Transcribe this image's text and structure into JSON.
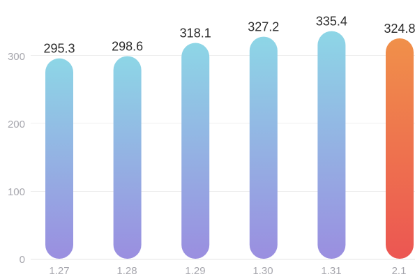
{
  "chart_data": {
    "type": "bar",
    "categories": [
      "1.27",
      "1.28",
      "1.29",
      "1.30",
      "1.31",
      "2.1"
    ],
    "values": [
      295.3,
      298.6,
      318.1,
      327.2,
      335.4,
      324.8
    ],
    "value_labels": [
      "295.3",
      "298.6",
      "318.1",
      "327.2",
      "335.4",
      "324.8"
    ],
    "title": "",
    "xlabel": "",
    "ylabel": "",
    "ylim": [
      0,
      300
    ],
    "yticks": [
      "0",
      "100",
      "200",
      "300"
    ],
    "grid": true,
    "legend": "none",
    "bar_gradient_default": {
      "top": "#8dd6e6",
      "bottom": "#9a8ee0"
    },
    "bar_gradient_highlight": {
      "top": "#f0904a",
      "bottom": "#ec5652"
    },
    "highlight_index": 5
  }
}
